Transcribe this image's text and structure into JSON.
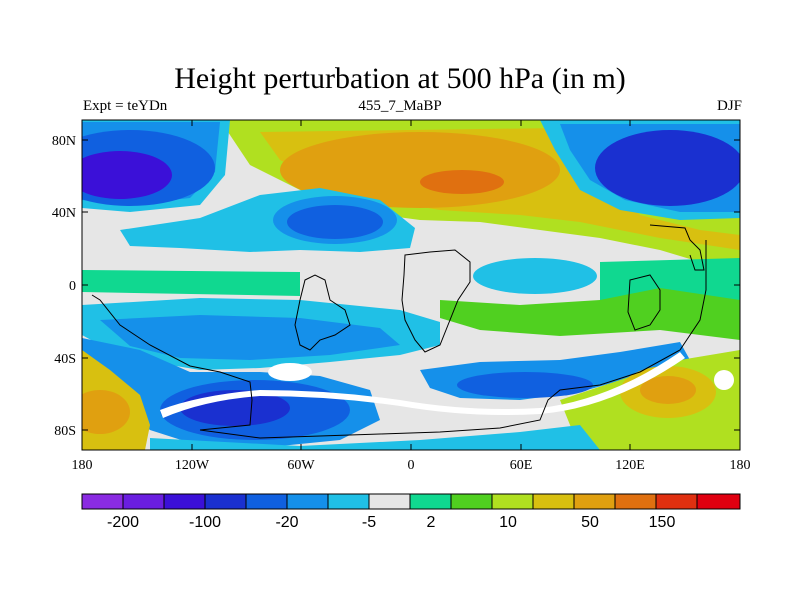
{
  "title": "Height perturbation at 500 hPa (in m)",
  "subtitle_left": "Expt = teYDn",
  "subtitle_center": "455_7_MaBP",
  "subtitle_right": "DJF",
  "axes": {
    "lon_ticks": [
      "180",
      "120W",
      "60W",
      "0",
      "60E",
      "120E",
      "180"
    ],
    "lat_ticks": [
      "80N",
      "40N",
      "0",
      "40S",
      "80S"
    ],
    "lon_range": [
      -180,
      180
    ],
    "lat_range": [
      -90,
      90
    ]
  },
  "colorbar": {
    "colors": [
      "#8a2be2",
      "#6a1ee0",
      "#3b10d8",
      "#1a30d0",
      "#1060e0",
      "#1590ea",
      "#20c0e6",
      "#e6e6e6",
      "#10d890",
      "#50d020",
      "#b0e020",
      "#d8c010",
      "#e0a010",
      "#e07010",
      "#e03010",
      "#e00010"
    ],
    "labels": [
      "-200",
      "-100",
      "-20",
      "-5",
      "2",
      "10",
      "50",
      "150"
    ]
  },
  "palette": {
    "neutral": "#e6e6e6",
    "blue_deep": "#3b10d8",
    "blue": "#1a30d0",
    "blue_mid": "#1060e0",
    "blue_light": "#1590ea",
    "cyan": "#20c0e6",
    "teal": "#10d890",
    "green": "#50d020",
    "yellow_green": "#b0e020",
    "yellow": "#d8c010",
    "orange": "#e0a010",
    "red_orange": "#e07010"
  }
}
